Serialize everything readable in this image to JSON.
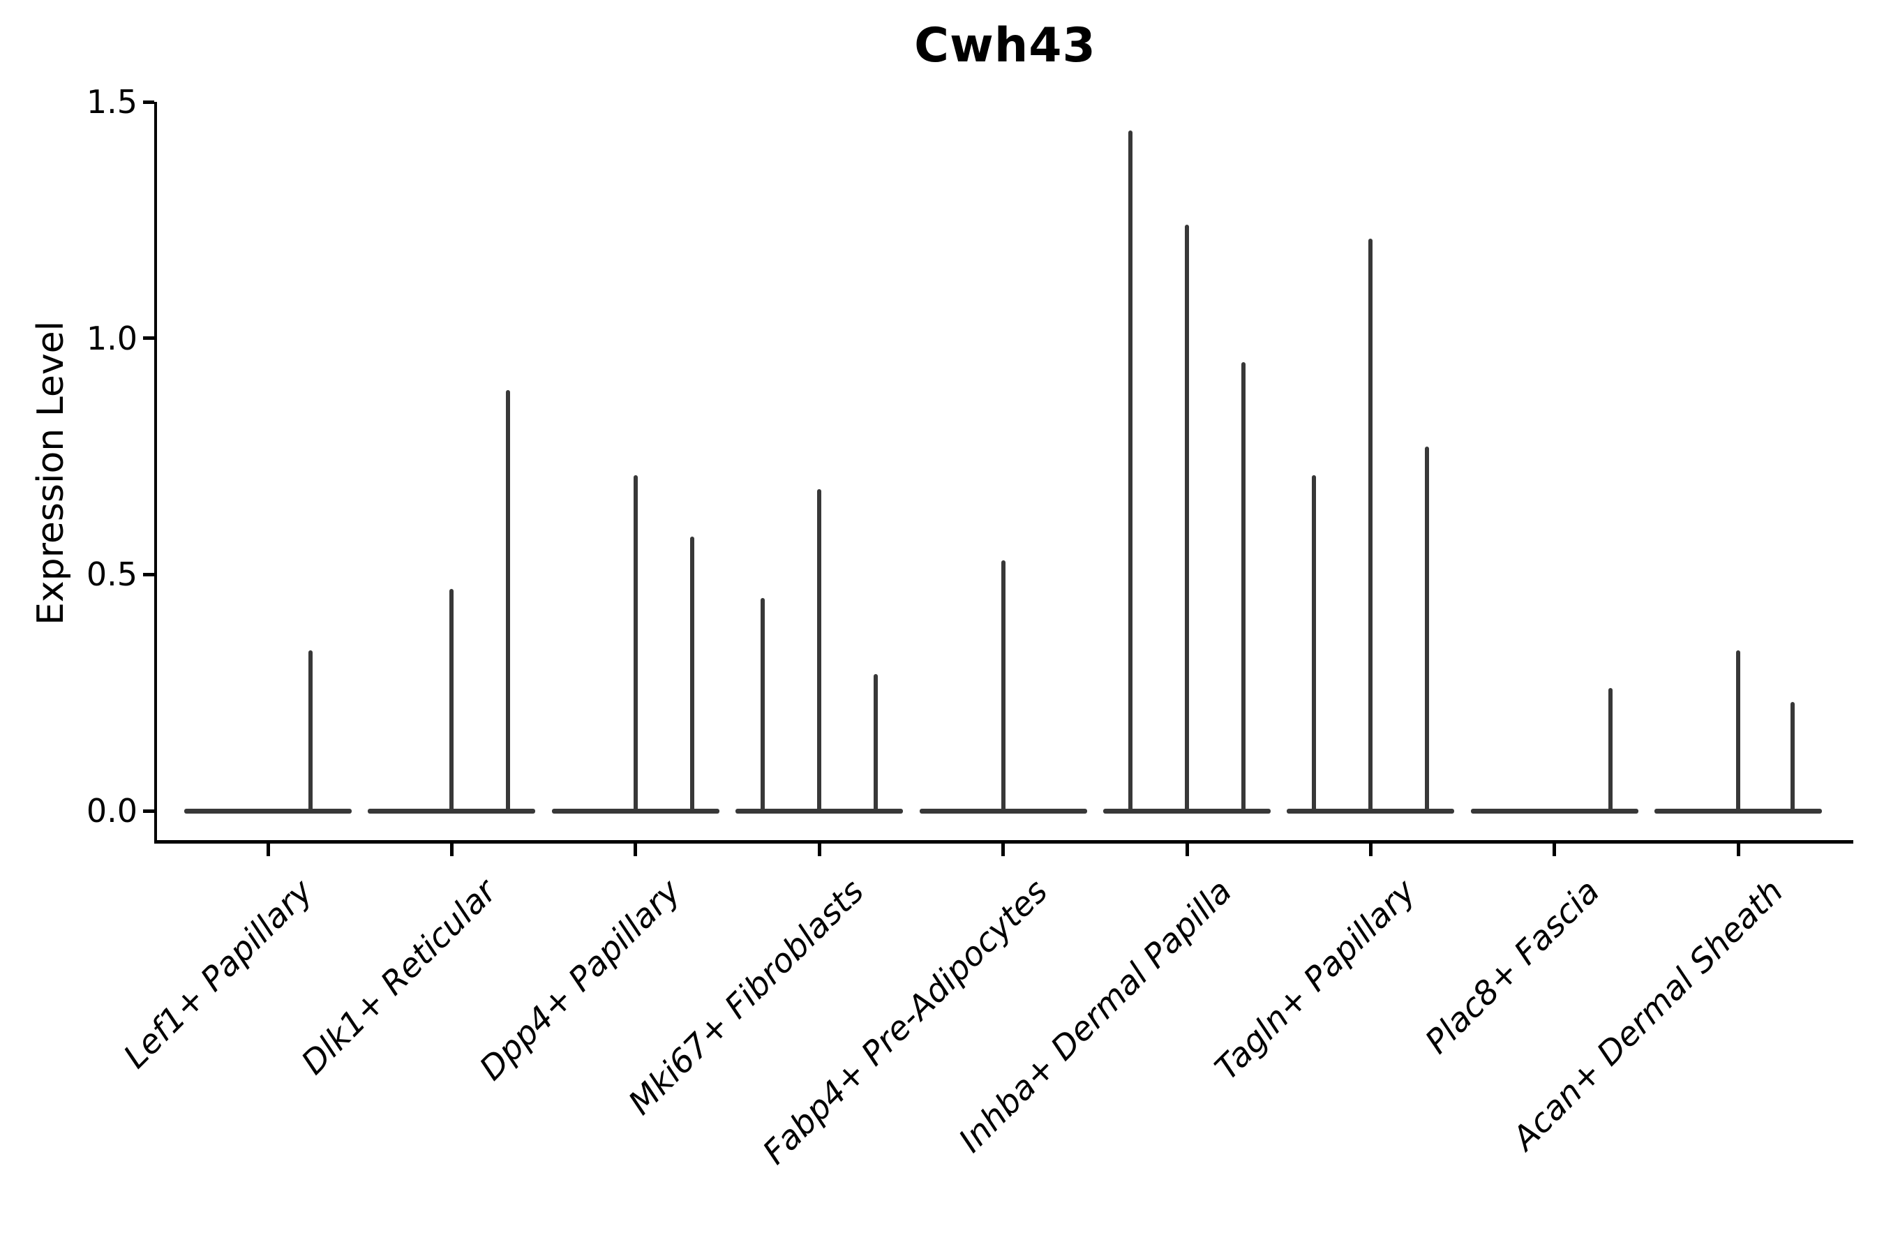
{
  "chart_data": {
    "type": "violin",
    "title": "Cwh43",
    "ylabel": "Expression Level",
    "xlabel": "",
    "ylim": [
      0,
      1.5
    ],
    "yticks": [
      "0.0",
      "0.5",
      "1.0",
      "1.5"
    ],
    "ytick_values": [
      0,
      0.5,
      1.0,
      1.5
    ],
    "grid": false,
    "legend": "none",
    "x_label_rotation_deg": 45,
    "x_label_style": "italic",
    "categories": [
      "Lef1+ Papillary",
      "Dlk1+ Reticular",
      "Dpp4+ Papillary",
      "Mki67+ Fibroblasts",
      "Fabp4+ Pre-Adipocytes",
      "Inhba+ Dermal Papilla",
      "Tagln+ Papillary",
      "Plac8+ Fascia",
      "Acan+ Dermal Sheath"
    ],
    "violins": [
      {
        "category": "Lef1+ Papillary",
        "baseline_value": 0,
        "spikes": [
          {
            "dx": 61,
            "value": 0.34
          }
        ]
      },
      {
        "category": "Dlk1+ Reticular",
        "baseline_value": 0,
        "spikes": [
          {
            "dx": 0,
            "value": 0.47
          },
          {
            "dx": 81,
            "value": 0.89
          }
        ]
      },
      {
        "category": "Dpp4+ Papillary",
        "baseline_value": 0,
        "spikes": [
          {
            "dx": 0,
            "value": 0.71
          },
          {
            "dx": 81,
            "value": 0.58
          }
        ]
      },
      {
        "category": "Mki67+ Fibroblasts",
        "baseline_value": 0,
        "spikes": [
          {
            "dx": -81,
            "value": 0.45
          },
          {
            "dx": 0,
            "value": 0.68
          },
          {
            "dx": 81,
            "value": 0.29
          }
        ]
      },
      {
        "category": "Fabp4+ Pre-Adipocytes",
        "baseline_value": 0,
        "spikes": [
          {
            "dx": 0,
            "value": 0.53
          }
        ]
      },
      {
        "category": "Inhba+ Dermal Papilla",
        "baseline_value": 0,
        "spikes": [
          {
            "dx": -81,
            "value": 1.44
          },
          {
            "dx": 0,
            "value": 1.24
          },
          {
            "dx": 81,
            "value": 0.95
          }
        ]
      },
      {
        "category": "Tagln+ Papillary",
        "baseline_value": 0,
        "spikes": [
          {
            "dx": -81,
            "value": 0.71
          },
          {
            "dx": 0,
            "value": 1.21
          },
          {
            "dx": 81,
            "value": 0.77
          }
        ]
      },
      {
        "category": "Plac8+ Fascia",
        "baseline_value": 0,
        "spikes": [
          {
            "dx": 80,
            "value": 0.26
          }
        ]
      },
      {
        "category": "Acan+ Dermal Sheath",
        "baseline_value": 0,
        "spikes": [
          {
            "dx": 0,
            "value": 0.34
          },
          {
            "dx": 78,
            "value": 0.23
          }
        ]
      }
    ],
    "colors": {
      "violin": "#383838",
      "axis": "#000000",
      "text": "#000000",
      "background": "#ffffff"
    }
  }
}
